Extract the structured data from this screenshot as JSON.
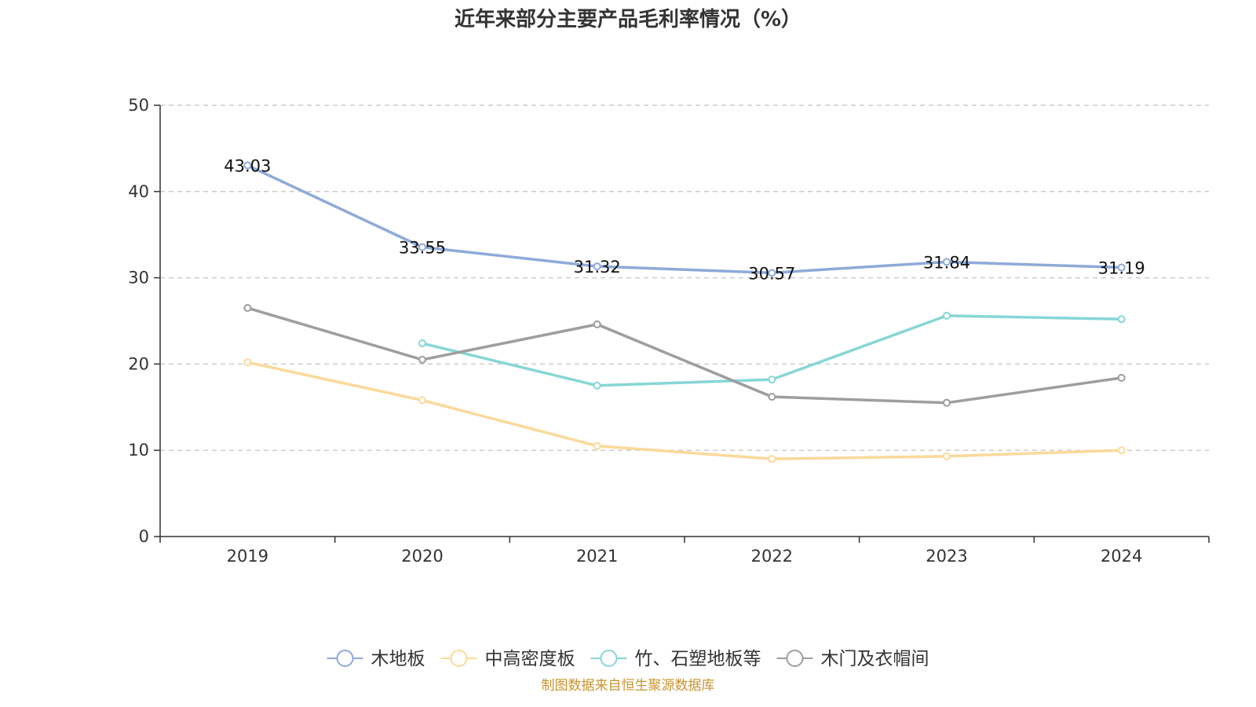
{
  "chart_data": {
    "type": "line",
    "title": "近年来部分主要产品毛利率情况（%）",
    "xlabel": "",
    "ylabel": "",
    "categories": [
      "2019",
      "2020",
      "2021",
      "2022",
      "2023",
      "2024"
    ],
    "ylim": [
      0,
      50
    ],
    "yticks": [
      0,
      10,
      20,
      30,
      40,
      50
    ],
    "grid": true,
    "legend_position": "bottom",
    "series": [
      {
        "name": "木地板",
        "color": "#8eaad8",
        "show_labels": true,
        "values": [
          43.03,
          33.55,
          31.32,
          30.57,
          31.84,
          31.19
        ],
        "labels": [
          "43.03",
          "33.55",
          "31.32",
          "30.57",
          "31.84",
          "31.19"
        ]
      },
      {
        "name": "中高密度板",
        "color": "#fbd99a",
        "show_labels": false,
        "values": [
          20.2,
          15.8,
          10.5,
          9.0,
          9.3,
          10.0
        ]
      },
      {
        "name": "竹、石塑地板等",
        "color": "#87d6d6",
        "show_labels": false,
        "values": [
          null,
          22.4,
          17.5,
          18.2,
          25.6,
          25.2
        ]
      },
      {
        "name": "木门及衣帽间",
        "color": "#9e9e9e",
        "show_labels": false,
        "values": [
          26.5,
          20.5,
          24.6,
          16.2,
          15.5,
          18.4
        ]
      }
    ]
  },
  "source_text": "制图数据来自恒生聚源数据库",
  "source_color": "#c9942e"
}
